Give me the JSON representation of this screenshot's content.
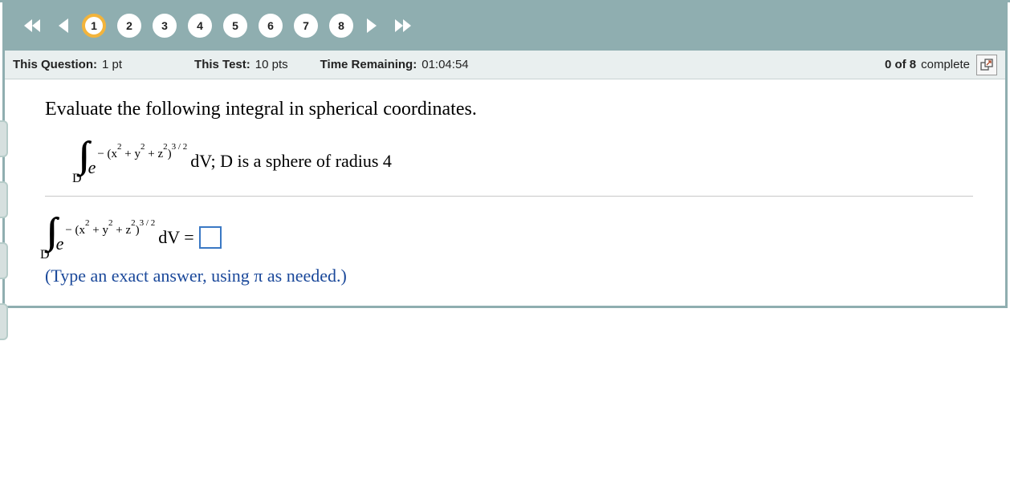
{
  "nav": {
    "questions": [
      {
        "num": "1",
        "active": true
      },
      {
        "num": "2",
        "active": false
      },
      {
        "num": "3",
        "active": false
      },
      {
        "num": "4",
        "active": false
      },
      {
        "num": "5",
        "active": false
      },
      {
        "num": "6",
        "active": false
      },
      {
        "num": "7",
        "active": false
      },
      {
        "num": "8",
        "active": false
      }
    ]
  },
  "info": {
    "this_question_label": "This Question:",
    "this_question_value": "1 pt",
    "this_test_label": "This Test:",
    "this_test_value": "10 pts",
    "time_label": "Time Remaining:",
    "time_value": "01:04:54",
    "progress_bold": "0 of 8",
    "progress_rest": "complete"
  },
  "problem": {
    "prompt": "Evaluate the following integral in spherical coordinates.",
    "integrals_glyph": "∫∫∫",
    "sub": "D",
    "e": "e",
    "exponent_html": "− (x<sup>2</sup> + y<sup>2</sup> + z<sup>2</sup>)<sup>3 / 2</sup>",
    "after1": "dV; D is a sphere of radius 4",
    "after2": "dV =",
    "instruction": "(Type an exact answer, using π as needed.)"
  },
  "colors": {
    "nav_bg": "#8faeb0",
    "info_bg": "#e9efef",
    "active_ring": "#f3b43b",
    "answer_border": "#3a78c4",
    "instruction_color": "#1a489a"
  }
}
